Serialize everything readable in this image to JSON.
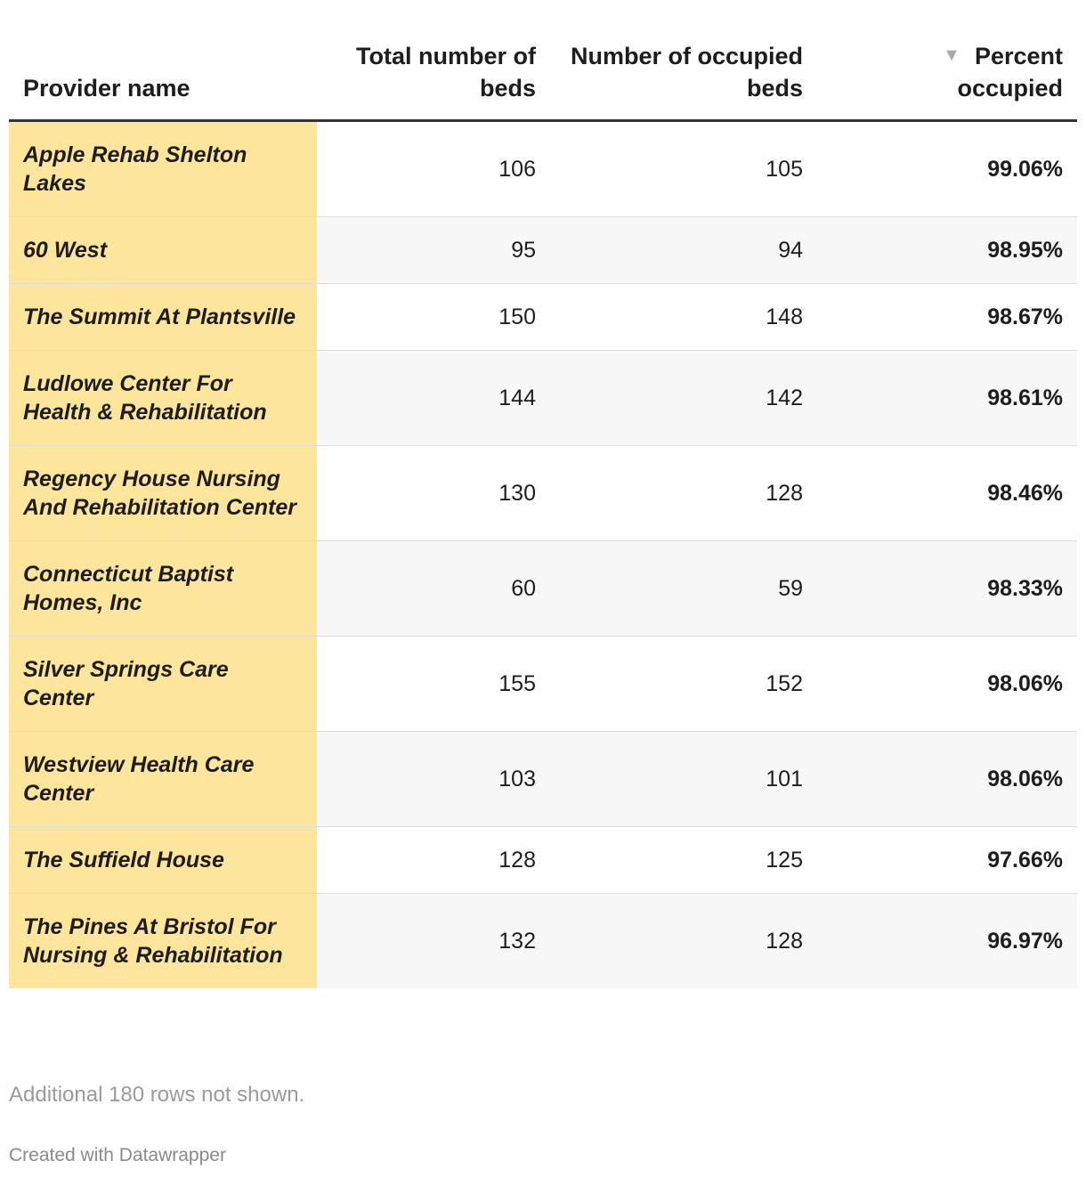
{
  "table": {
    "headers": [
      "Provider name",
      "Total number of beds",
      "Number of occupied beds",
      "Percent occupied"
    ],
    "rows": [
      [
        "Apple Rehab Shelton Lakes",
        "106",
        "105",
        "99.06%"
      ],
      [
        "60 West",
        "95",
        "94",
        "98.95%"
      ],
      [
        "The Summit At Plantsville",
        "150",
        "148",
        "98.67%"
      ],
      [
        "Ludlowe Center For Health & Rehabilitation",
        "144",
        "142",
        "98.61%"
      ],
      [
        "Regency House Nursing And Rehabilitation Center",
        "130",
        "128",
        "98.46%"
      ],
      [
        "Connecticut Baptist Homes, Inc",
        "60",
        "59",
        "98.33%"
      ],
      [
        "Silver Springs Care Center",
        "155",
        "152",
        "98.06%"
      ],
      [
        "Westview Health Care Center",
        "103",
        "101",
        "98.06%"
      ],
      [
        "The Suffield House",
        "128",
        "125",
        "97.66%"
      ],
      [
        "The Pines At Bristol For Nursing & Rehabilitation",
        "132",
        "128",
        "96.97%"
      ]
    ],
    "note": "Additional 180 rows not shown."
  },
  "footer": {
    "credit": "Created with Datawrapper"
  }
}
